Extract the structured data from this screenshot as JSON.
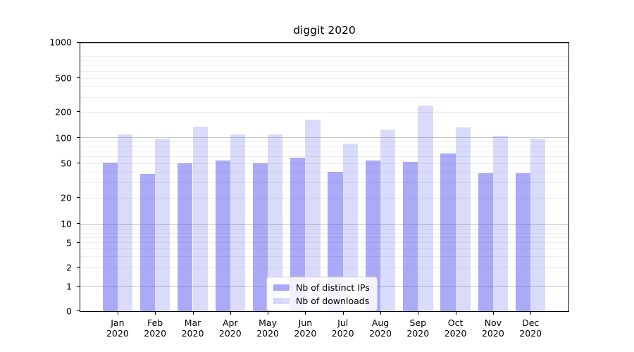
{
  "chart_data": {
    "type": "bar",
    "title": "diggit 2020",
    "categories": [
      "Jan",
      "Feb",
      "Mar",
      "Apr",
      "May",
      "Jun",
      "Jul",
      "Aug",
      "Sep",
      "Oct",
      "Nov",
      "Dec"
    ],
    "category_year": "2020",
    "series": [
      {
        "name": "Nb of distinct IPs",
        "color": "rgba(85,85,238,0.5)",
        "values": [
          51,
          38,
          50,
          54,
          50,
          58,
          40,
          54,
          52,
          66,
          39,
          39
        ]
      },
      {
        "name": "Nb of downloads",
        "color": "rgba(85,85,238,0.22)",
        "values": [
          110,
          98,
          134,
          110,
          110,
          164,
          86,
          124,
          240,
          131,
          104,
          98
        ]
      }
    ],
    "yscale": "symlog",
    "yticks": [
      0,
      1,
      2,
      5,
      10,
      20,
      50,
      100,
      200,
      500,
      1000
    ],
    "ylim": [
      0,
      1300
    ],
    "xlabel": "",
    "ylabel": "",
    "grid": "both",
    "legend_position": "lower center"
  },
  "colors": {
    "bar_dark": "#aaaaf2",
    "bar_light": "#dcdcfa",
    "grid_major": "#c6c6c6",
    "grid_minor": "#ededed",
    "axis": "#000000",
    "legend_border": "#cccccc"
  }
}
